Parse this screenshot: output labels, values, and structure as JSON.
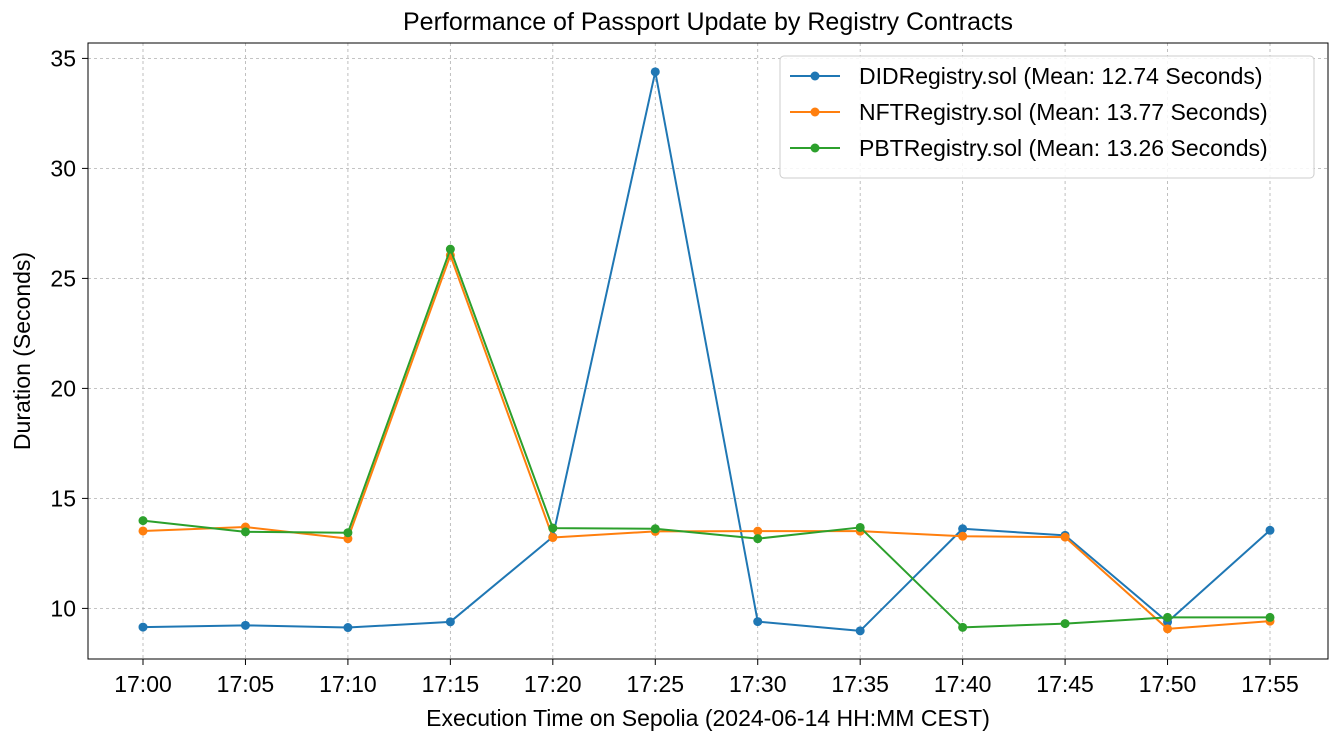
{
  "chart_data": {
    "type": "line",
    "title": "Performance of Passport Update by Registry Contracts",
    "xlabel": "Execution Time on Sepolia (2024-06-14 HH:MM CEST)",
    "ylabel": "Duration (Seconds)",
    "categories": [
      "17:00",
      "17:05",
      "17:10",
      "17:15",
      "17:20",
      "17:25",
      "17:30",
      "17:35",
      "17:40",
      "17:45",
      "17:50",
      "17:55"
    ],
    "ylim": [
      7.7,
      35.7
    ],
    "yticks": [
      10,
      15,
      20,
      25,
      30,
      35
    ],
    "grid": true,
    "legend_position": "top-right",
    "series": [
      {
        "name": "DIDRegistry.sol (Mean: 12.74 Seconds)",
        "color": "#1f77b4",
        "values": [
          9.15,
          9.23,
          9.13,
          9.39,
          13.25,
          34.39,
          9.4,
          8.98,
          13.62,
          13.32,
          9.38,
          13.55
        ]
      },
      {
        "name": "NFTRegistry.sol (Mean: 13.77 Seconds)",
        "color": "#ff7f0e",
        "values": [
          13.52,
          13.7,
          13.17,
          26.05,
          13.22,
          13.5,
          13.51,
          13.51,
          13.28,
          13.24,
          9.07,
          9.42
        ]
      },
      {
        "name": "PBTRegistry.sol (Mean: 13.26 Seconds)",
        "color": "#2ca02c",
        "values": [
          13.99,
          13.48,
          13.44,
          26.33,
          13.65,
          13.62,
          13.17,
          13.68,
          9.14,
          9.31,
          9.59,
          9.59
        ]
      }
    ]
  }
}
